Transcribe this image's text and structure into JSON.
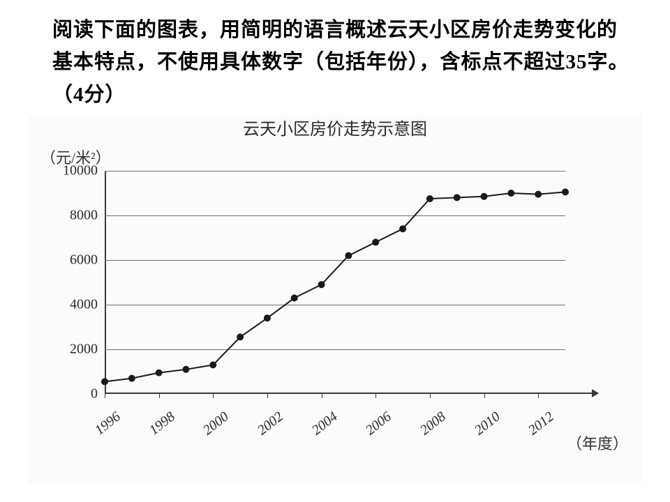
{
  "question": "阅读下面的图表，用简明的语言概述云天小区房价走势变化的基本特点，不使用具体数字（包括年份），含标点不超过35字。（4分）",
  "chart": {
    "type": "line",
    "title": "云天小区房价走势示意图",
    "y_unit": "（元/米²）",
    "x_unit": "（年度）",
    "background_color": "#fbfbf9",
    "grid_color": "#707070",
    "axis_color": "#3a3a3a",
    "line_color": "#1a1a1a",
    "marker_color": "#1a1a1a",
    "line_width": 2,
    "marker_radius": 5,
    "xlim": [
      1996,
      2013
    ],
    "ylim": [
      0,
      10000
    ],
    "y_ticks": [
      0,
      2000,
      4000,
      6000,
      8000,
      10000
    ],
    "x_tick_labels": [
      "1996",
      "1998",
      "2000",
      "2002",
      "2004",
      "2006",
      "2008",
      "2010",
      "2012"
    ],
    "x_tick_years": [
      1996,
      1998,
      2000,
      2002,
      2004,
      2006,
      2008,
      2010,
      2012
    ],
    "data_years": [
      1996,
      1997,
      1998,
      1999,
      2000,
      2001,
      2002,
      2003,
      2004,
      2005,
      2006,
      2007,
      2008,
      2009,
      2010,
      2011,
      2012,
      2013
    ],
    "data_values": [
      550,
      700,
      950,
      1100,
      1300,
      2550,
      3400,
      4300,
      4900,
      6200,
      6800,
      7400,
      8750,
      8800,
      8850,
      9000,
      8950,
      9050
    ]
  }
}
